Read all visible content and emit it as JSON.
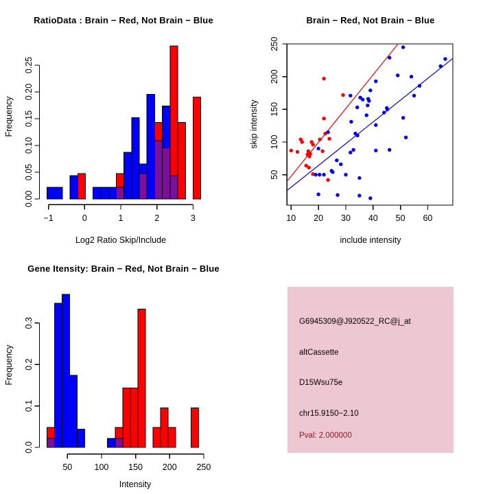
{
  "colors": {
    "red": "#ff0000",
    "blue": "#0000ff",
    "overlap_purple": "#7d0f9e",
    "axis": "#000000",
    "info_bg": "#edc7d2",
    "pval_text": "#8b1a1a",
    "background": "#ffffff"
  },
  "chart_data": [
    {
      "id": "ratio_hist",
      "type": "bar",
      "title": "RatioData : Brain − Red, Not Brain − Blue",
      "xlabel": "Log2 Ratio Skip/Include",
      "ylabel": "Frequency",
      "x_tick_values": [
        -1,
        0,
        1,
        2,
        3
      ],
      "x_tick_labels": [
        "−1",
        "0",
        "1",
        "2",
        "3"
      ],
      "y_tick_values": [
        0,
        0.05,
        0.1,
        0.15,
        0.2,
        0.25
      ],
      "y_tick_labels": [
        "0.00",
        "0.05",
        "0.10",
        "0.15",
        "0.20",
        "0.25"
      ],
      "xlim": [
        -1.2,
        3.3
      ],
      "ylim": [
        0,
        0.29
      ],
      "grid": false,
      "bin_start": -1.04,
      "bin_width": 0.2127,
      "series": [
        {
          "name": "Not Brain",
          "color_key": "blue",
          "heights": [
            0.0217,
            0.0217,
            0,
            0.0435,
            0,
            0,
            0.0217,
            0.0217,
            0.0217,
            0.0217,
            0.087,
            0.1522,
            0.0652,
            0.1957,
            0.1087,
            0.1739,
            0.0435,
            0,
            0,
            0
          ]
        },
        {
          "name": "Brain",
          "color_key": "red",
          "heights": [
            0,
            0,
            0,
            0,
            0.0476,
            0,
            0,
            0,
            0,
            0.0476,
            0,
            0,
            0.0476,
            0,
            0.1429,
            0.0952,
            0.2857,
            0.1429,
            0,
            0.1905
          ]
        }
      ],
      "overlap_color_key": "overlap_purple"
    },
    {
      "id": "scatter",
      "type": "scatter",
      "title": "Brain − Red, Not Brain − Blue",
      "xlabel": "include intensity",
      "ylabel": "skip intensity",
      "x_tick_values": [
        10,
        20,
        30,
        40,
        50,
        60
      ],
      "x_tick_labels": [
        "10",
        "20",
        "30",
        "40",
        "50",
        "60"
      ],
      "y_tick_values": [
        50,
        100,
        150,
        200,
        250
      ],
      "y_tick_labels": [
        "50",
        "100",
        "150",
        "200",
        "250"
      ],
      "xlim": [
        8.5,
        69.2
      ],
      "ylim": [
        3.4,
        250.1
      ],
      "grid": false,
      "series": [
        {
          "name": "Brain",
          "color_key": "red",
          "fit_line": {
            "x1": 8.7,
            "y1": 41,
            "x2": 49.1,
            "y2": 250
          },
          "points": [
            [
              22,
              197
            ],
            [
              29,
              172
            ],
            [
              22,
              136
            ],
            [
              22.5,
              113
            ],
            [
              24,
              105
            ],
            [
              20.5,
              104
            ],
            [
              13.5,
              104
            ],
            [
              14,
              100
            ],
            [
              17.5,
              100
            ],
            [
              18,
              96
            ],
            [
              10,
              87
            ],
            [
              12.3,
              85
            ],
            [
              16.3,
              86
            ],
            [
              16,
              81
            ],
            [
              17,
              82
            ],
            [
              16.7,
              78
            ],
            [
              21.5,
              86
            ],
            [
              15.5,
              64
            ],
            [
              16.5,
              61
            ],
            [
              18,
              51
            ],
            [
              23.5,
              42
            ]
          ]
        },
        {
          "name": "Not Brain",
          "color_key": "blue",
          "fit_line": {
            "x1": 8.7,
            "y1": 26.5,
            "x2": 69.2,
            "y2": 228
          },
          "points": [
            [
              51,
              245
            ],
            [
              46,
              229
            ],
            [
              64.7,
              216
            ],
            [
              66.4,
              227
            ],
            [
              49,
              202
            ],
            [
              54,
              200
            ],
            [
              41,
              193
            ],
            [
              57,
              186
            ],
            [
              39,
              179
            ],
            [
              55,
              171
            ],
            [
              45,
              152
            ],
            [
              45.2,
              150
            ],
            [
              44,
              145
            ],
            [
              51,
              137
            ],
            [
              41,
              126
            ],
            [
              52,
              107
            ],
            [
              41,
              87
            ],
            [
              46,
              88
            ],
            [
              39,
              14
            ],
            [
              32,
              131
            ],
            [
              33.5,
              113
            ],
            [
              34.3,
              110
            ],
            [
              23.5,
              115
            ],
            [
              20,
              90
            ],
            [
              31.7,
              84
            ],
            [
              32.8,
              88
            ],
            [
              26.7,
              72
            ],
            [
              28.2,
              66
            ],
            [
              24.8,
              56
            ],
            [
              25.2,
              54
            ],
            [
              19,
              50
            ],
            [
              20.4,
              50
            ],
            [
              22,
              50
            ],
            [
              30,
              50
            ],
            [
              35,
              45
            ],
            [
              20,
              20
            ],
            [
              27,
              19
            ],
            [
              35,
              18
            ],
            [
              31.7,
              171
            ],
            [
              35.3,
              168
            ],
            [
              36.2,
              165
            ],
            [
              38.2,
              166
            ],
            [
              38.5,
              163
            ],
            [
              34.2,
              153
            ],
            [
              38,
              156
            ],
            [
              37.6,
              141
            ]
          ]
        }
      ]
    },
    {
      "id": "gene_hist",
      "type": "bar",
      "title": "Gene Itensity: Brain − Red, Not Brain − Blue",
      "xlabel": "Intensity",
      "ylabel": "Frequency",
      "x_tick_values": [
        50,
        100,
        150,
        200,
        250
      ],
      "x_tick_labels": [
        "50",
        "100",
        "150",
        "200",
        "250"
      ],
      "y_tick_values": [
        0,
        0.1,
        0.2,
        0.3
      ],
      "y_tick_labels": [
        "0.0",
        "0.1",
        "0.2",
        "0.3"
      ],
      "xlim": [
        19,
        243
      ],
      "ylim": [
        0,
        0.38
      ],
      "grid": false,
      "bin_start": 19.8,
      "bin_width": 11.13,
      "series": [
        {
          "name": "Not Brain",
          "color_key": "blue",
          "heights": [
            0.0217,
            0.3478,
            0.3696,
            0.1739,
            0.0435,
            0,
            0,
            0,
            0.0217,
            0.0217,
            0,
            0,
            0,
            0,
            0,
            0,
            0,
            0,
            0,
            0
          ]
        },
        {
          "name": "Brain",
          "color_key": "red",
          "heights": [
            0.0476,
            0,
            0,
            0,
            0,
            0,
            0,
            0,
            0,
            0.0476,
            0.1429,
            0.1429,
            0.3333,
            0,
            0.0476,
            0.0952,
            0.0476,
            0,
            0,
            0.0952
          ]
        }
      ],
      "overlap_color_key": "overlap_purple"
    }
  ],
  "info_panel": {
    "probe_id": "G6945309@J920522_RC@j_at",
    "event_type": "altCassette",
    "gene": "D15Wsu75e",
    "location": "chr15.9150−2.10",
    "pval": "Pval: 2.000000"
  }
}
